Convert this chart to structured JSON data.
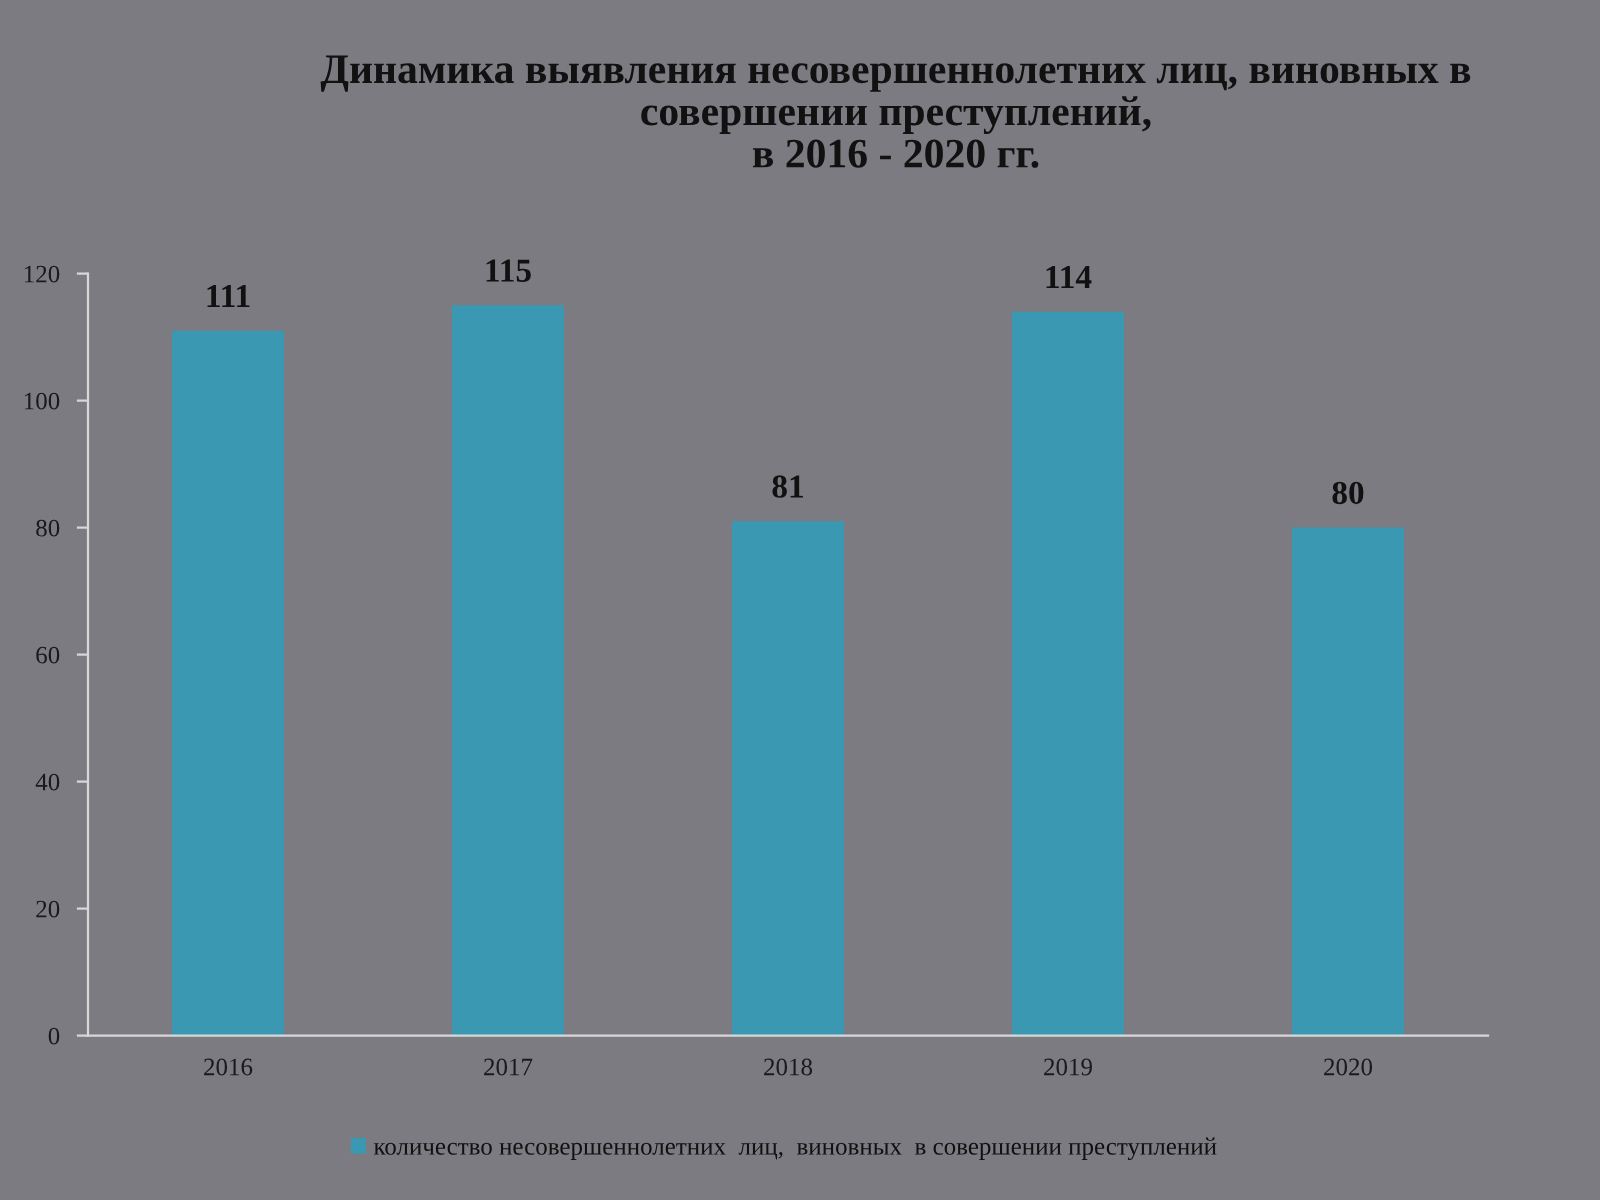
{
  "chart_data": {
    "type": "bar",
    "title": "Динамика выявления несовершеннолетних лиц, виновных в\nсовершении преступлений,\nв 2016 - 2020 гг.",
    "categories": [
      "2016",
      "2017",
      "2018",
      "2019",
      "2020"
    ],
    "series": [
      {
        "name": "количество несовершеннолетних  лиц,  виновных  в совершении преступлений",
        "color": "#3a98b3",
        "values": [
          111,
          115,
          81,
          114,
          80
        ]
      }
    ],
    "ylim": [
      0,
      120
    ],
    "yticks": [
      0,
      20,
      40,
      60,
      80,
      100,
      120
    ],
    "data_labels": true,
    "grid": false,
    "legend": "bottom"
  }
}
